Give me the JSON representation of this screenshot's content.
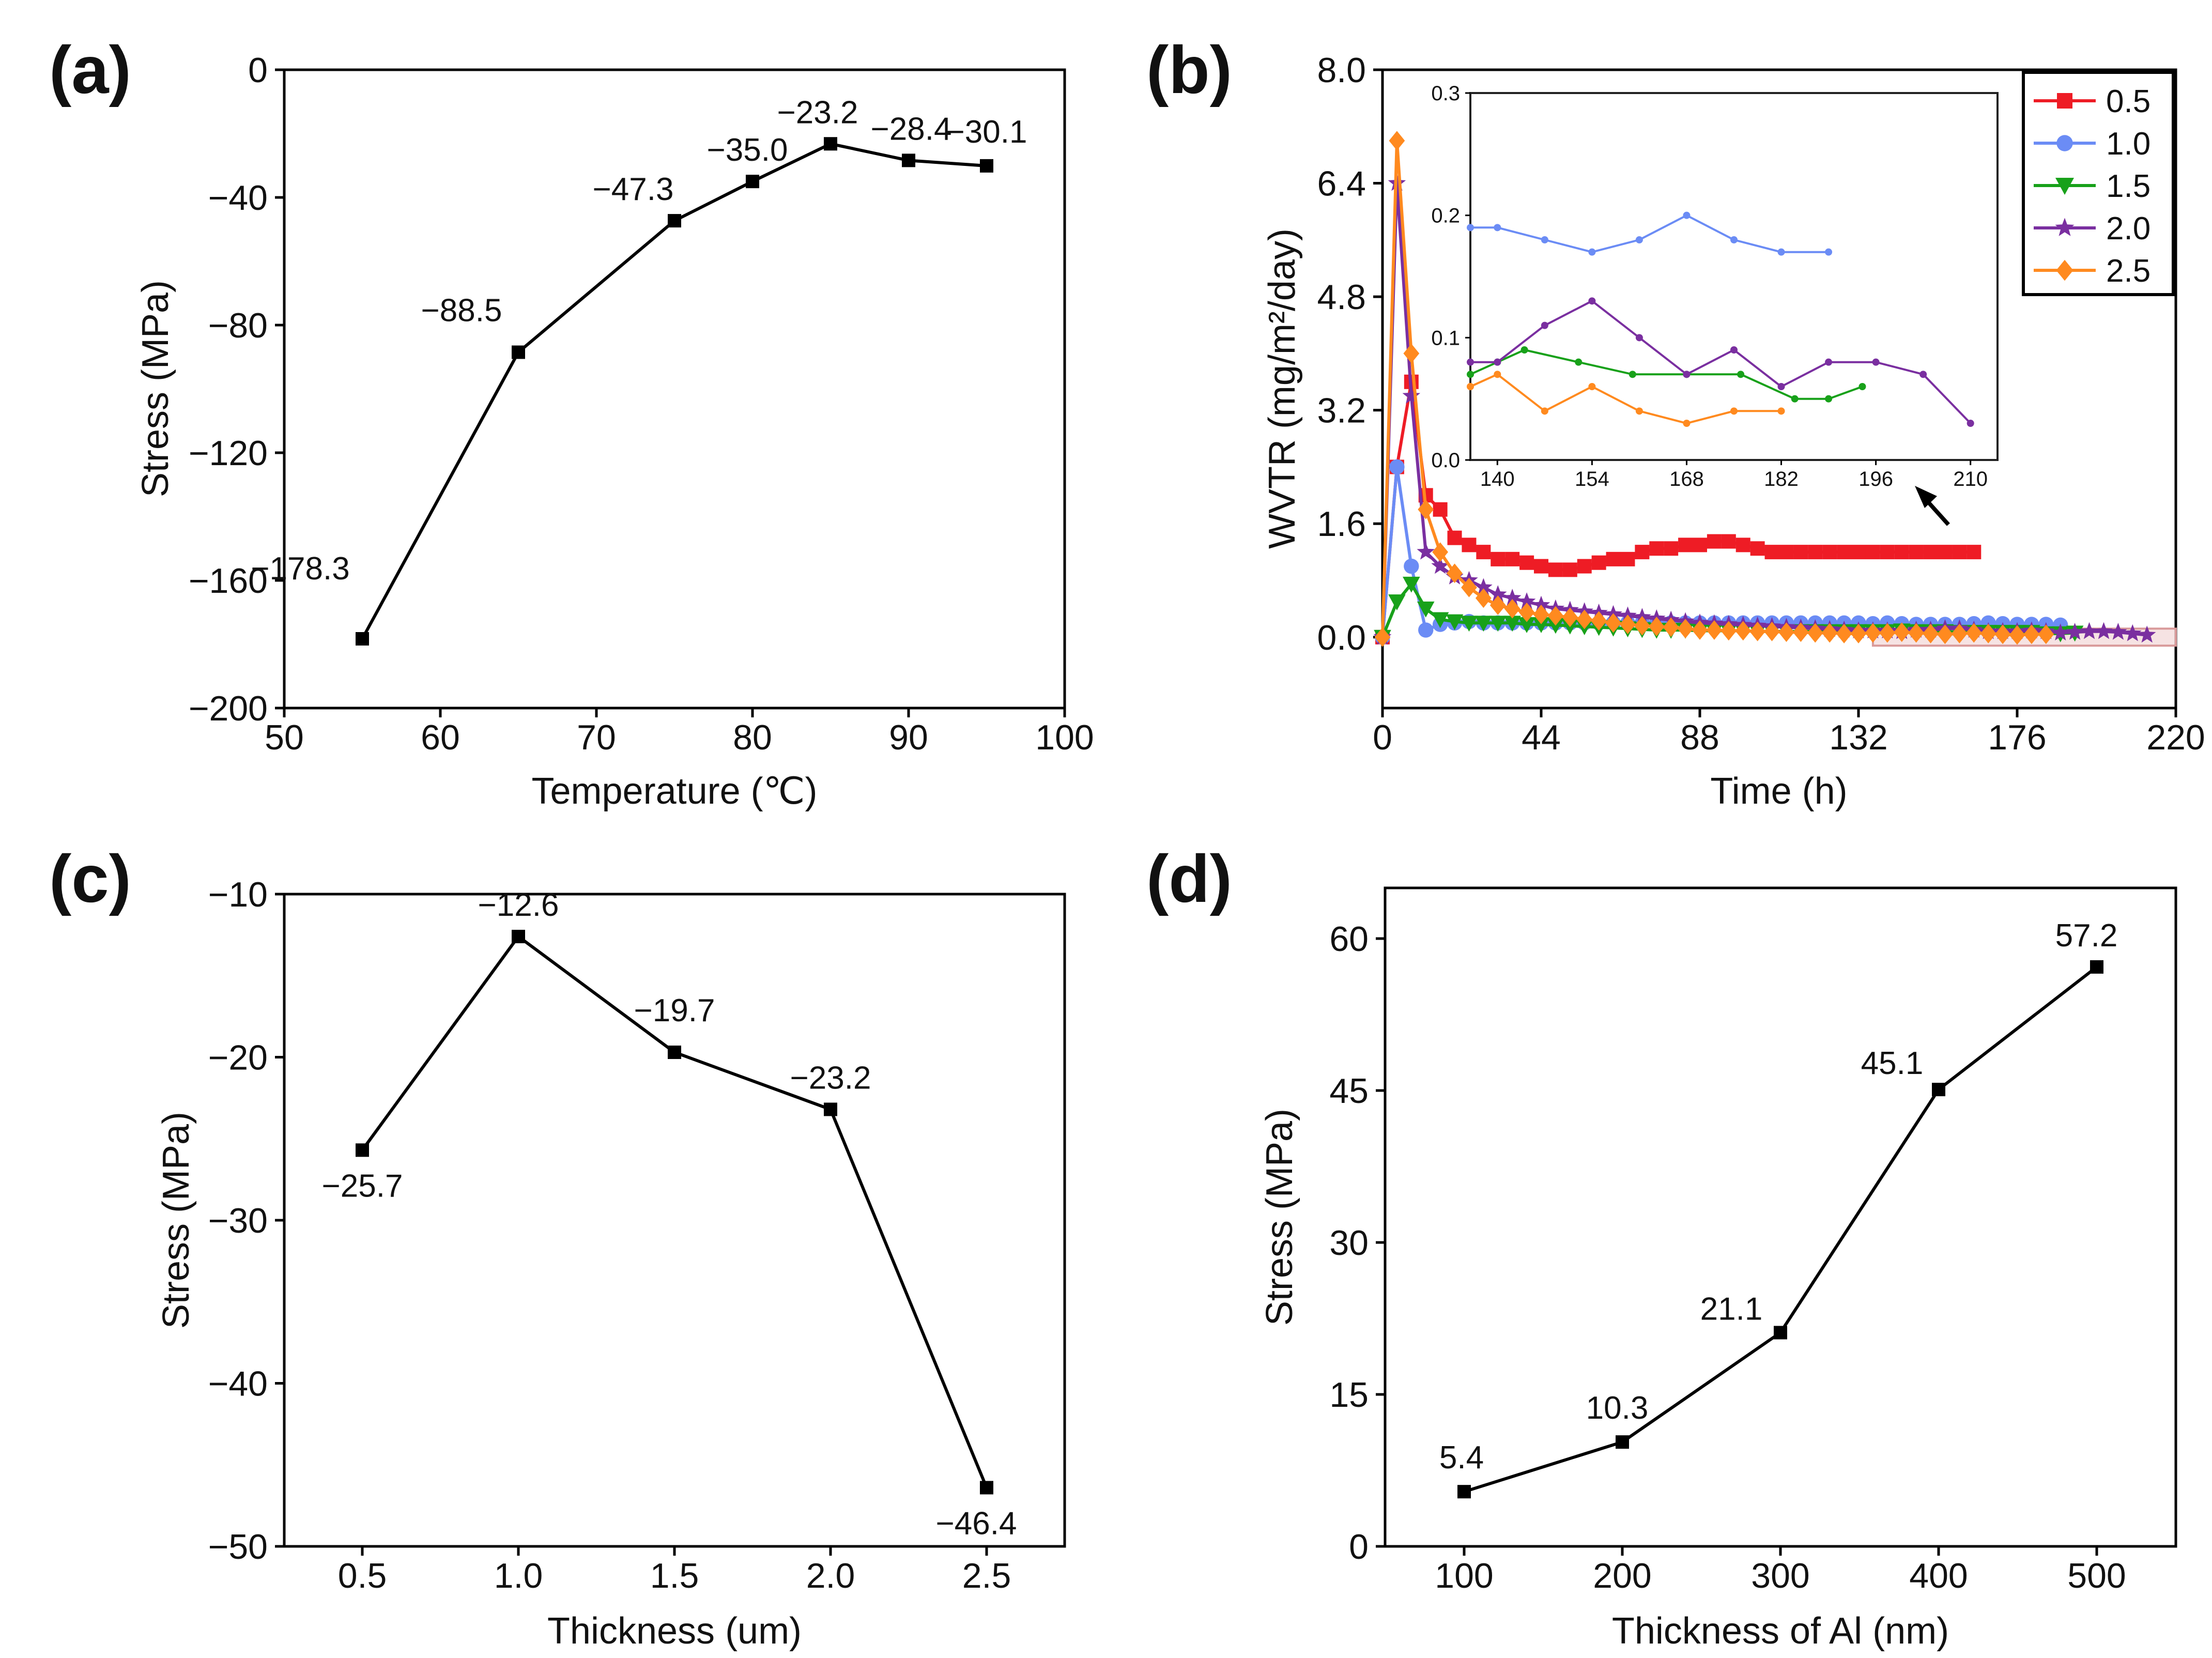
{
  "colors": {
    "series_0_5": "#ee1c25",
    "series_1_0": "#6b8cf5",
    "series_1_5": "#18a11a",
    "series_2_0": "#7a2fa0",
    "series_2_5": "#ff8a1f",
    "line": "#000000"
  },
  "chart_data": [
    {
      "type": "line",
      "panel": "(a)",
      "xlabel": "Temperature (℃)",
      "ylabel": "Stress (MPa)",
      "xlim": [
        50,
        100
      ],
      "ylim": [
        -200,
        0
      ],
      "xticks": [
        50,
        60,
        70,
        80,
        90,
        100
      ],
      "yticks": [
        0,
        -40,
        -80,
        -120,
        -160,
        -200
      ],
      "xtick_labels": [
        "50",
        "60",
        "70",
        "80",
        "90",
        "100"
      ],
      "ytick_labels": [
        "0",
        "−40",
        "−80",
        "−120",
        "−160",
        "−200"
      ],
      "x": [
        55,
        65,
        75,
        80,
        85,
        90,
        95
      ],
      "y": [
        -178.3,
        -88.5,
        -47.3,
        -35.0,
        -23.2,
        -28.4,
        -30.1
      ],
      "point_labels": [
        "−178.3",
        "−88.5",
        "−47.3",
        "−35.0",
        "−23.2",
        "−28.4",
        "−30.1"
      ],
      "marker": "square"
    },
    {
      "type": "line",
      "panel": "(b)",
      "xlabel": "Time (h)",
      "ylabel": "WVTR (mg/m²/day)",
      "xlim": [
        0,
        220
      ],
      "ylim": [
        -1.0,
        8.0
      ],
      "xticks": [
        0,
        44,
        88,
        132,
        176,
        220
      ],
      "yticks": [
        0.0,
        1.6,
        3.2,
        4.8,
        6.4,
        8.0
      ],
      "xtick_labels": [
        "0",
        "44",
        "88",
        "132",
        "176",
        "220"
      ],
      "ytick_labels": [
        "0.0",
        "1.6",
        "3.2",
        "4.8",
        "6.4",
        "8.0"
      ],
      "legend_position": "top-right",
      "series": [
        {
          "name": "0.5",
          "color_key": "series_0_5",
          "marker": "square",
          "x": [
            0,
            4,
            8,
            12,
            16,
            20,
            24,
            28,
            32,
            36,
            40,
            44,
            48,
            52,
            56,
            60,
            64,
            68,
            72,
            76,
            80,
            84,
            88,
            92,
            96,
            100,
            104,
            108,
            112,
            116,
            120,
            124,
            128,
            132,
            136,
            140,
            144,
            148,
            152,
            156,
            160,
            164
          ],
          "y": [
            0.0,
            2.4,
            3.6,
            2.0,
            1.8,
            1.4,
            1.3,
            1.2,
            1.1,
            1.1,
            1.05,
            1.0,
            0.95,
            0.95,
            1.0,
            1.05,
            1.1,
            1.1,
            1.2,
            1.25,
            1.25,
            1.3,
            1.3,
            1.35,
            1.35,
            1.3,
            1.25,
            1.2,
            1.2,
            1.2,
            1.2,
            1.2,
            1.2,
            1.2,
            1.2,
            1.2,
            1.2,
            1.2,
            1.2,
            1.2,
            1.2,
            1.2
          ]
        },
        {
          "name": "1.0",
          "color_key": "series_1_0",
          "marker": "circle",
          "x": [
            0,
            4,
            8,
            12,
            16,
            20,
            24,
            28,
            32,
            36,
            40,
            44,
            48,
            52,
            56,
            60,
            64,
            68,
            72,
            76,
            80,
            84,
            88,
            92,
            96,
            100,
            104,
            108,
            112,
            116,
            120,
            124,
            128,
            132,
            136,
            140,
            144,
            148,
            152,
            156,
            160,
            164,
            168,
            172,
            176,
            180,
            184,
            188
          ],
          "y": [
            0.0,
            2.4,
            1.0,
            0.1,
            0.18,
            0.2,
            0.22,
            0.2,
            0.2,
            0.2,
            0.2,
            0.2,
            0.2,
            0.2,
            0.2,
            0.2,
            0.2,
            0.2,
            0.2,
            0.2,
            0.2,
            0.2,
            0.2,
            0.2,
            0.2,
            0.2,
            0.2,
            0.2,
            0.2,
            0.2,
            0.2,
            0.2,
            0.2,
            0.2,
            0.19,
            0.2,
            0.19,
            0.18,
            0.18,
            0.18,
            0.18,
            0.19,
            0.2,
            0.19,
            0.18,
            0.18,
            0.18,
            0.17
          ]
        },
        {
          "name": "1.5",
          "color_key": "series_1_5",
          "marker": "triangle-down",
          "x": [
            0,
            4,
            8,
            12,
            16,
            20,
            24,
            28,
            32,
            36,
            40,
            44,
            48,
            52,
            56,
            60,
            64,
            68,
            72,
            76,
            80,
            84,
            88,
            92,
            96,
            100,
            104,
            108,
            112,
            116,
            120,
            124,
            128,
            132,
            136,
            140,
            144,
            148,
            152,
            156,
            160,
            164,
            168,
            172,
            176,
            180,
            184,
            188,
            192
          ],
          "y": [
            0.0,
            0.5,
            0.75,
            0.4,
            0.25,
            0.22,
            0.2,
            0.2,
            0.2,
            0.2,
            0.18,
            0.18,
            0.17,
            0.16,
            0.15,
            0.14,
            0.13,
            0.12,
            0.11,
            0.1,
            0.1,
            0.1,
            0.09,
            0.09,
            0.09,
            0.09,
            0.08,
            0.08,
            0.08,
            0.08,
            0.08,
            0.08,
            0.08,
            0.08,
            0.08,
            0.08,
            0.09,
            0.08,
            0.08,
            0.08,
            0.07,
            0.07,
            0.07,
            0.07,
            0.07,
            0.07,
            0.05,
            0.05,
            0.06
          ]
        },
        {
          "name": "2.0",
          "color_key": "series_2_0",
          "marker": "star",
          "x": [
            0,
            4,
            8,
            12,
            16,
            20,
            24,
            28,
            32,
            36,
            40,
            44,
            48,
            52,
            56,
            60,
            64,
            68,
            72,
            76,
            80,
            84,
            88,
            92,
            96,
            100,
            104,
            108,
            112,
            116,
            120,
            124,
            128,
            132,
            136,
            140,
            144,
            148,
            152,
            156,
            160,
            164,
            168,
            172,
            176,
            180,
            184,
            188,
            192,
            196,
            200,
            204,
            208,
            212
          ],
          "y": [
            0.0,
            6.4,
            3.4,
            1.2,
            1.0,
            0.85,
            0.8,
            0.7,
            0.6,
            0.55,
            0.5,
            0.45,
            0.4,
            0.38,
            0.36,
            0.34,
            0.32,
            0.3,
            0.28,
            0.26,
            0.24,
            0.22,
            0.2,
            0.19,
            0.18,
            0.17,
            0.16,
            0.15,
            0.14,
            0.13,
            0.12,
            0.11,
            0.1,
            0.09,
            0.09,
            0.09,
            0.08,
            0.1,
            0.1,
            0.12,
            0.12,
            0.1,
            0.08,
            0.08,
            0.08,
            0.09,
            0.08,
            0.06,
            0.07,
            0.08,
            0.08,
            0.07,
            0.05,
            0.03
          ]
        },
        {
          "name": "2.5",
          "color_key": "series_2_5",
          "marker": "diamond",
          "x": [
            0,
            4,
            8,
            12,
            16,
            20,
            24,
            28,
            32,
            36,
            40,
            44,
            48,
            52,
            56,
            60,
            64,
            68,
            72,
            76,
            80,
            84,
            88,
            92,
            96,
            100,
            104,
            108,
            112,
            116,
            120,
            124,
            128,
            132,
            136,
            140,
            144,
            148,
            152,
            156,
            160,
            164,
            168,
            172,
            176,
            180,
            184
          ],
          "y": [
            0.0,
            7.0,
            4.0,
            1.8,
            1.2,
            0.9,
            0.7,
            0.55,
            0.45,
            0.4,
            0.35,
            0.32,
            0.3,
            0.28,
            0.25,
            0.23,
            0.2,
            0.18,
            0.16,
            0.15,
            0.14,
            0.12,
            0.1,
            0.1,
            0.09,
            0.09,
            0.08,
            0.08,
            0.07,
            0.07,
            0.06,
            0.06,
            0.05,
            0.05,
            0.06,
            0.06,
            0.07,
            0.06,
            0.05,
            0.04,
            0.05,
            0.06,
            0.05,
            0.04,
            0.03,
            0.04,
            0.04
          ]
        }
      ],
      "inset": {
        "xlim": [
          136,
          214
        ],
        "ylim": [
          0.0,
          0.3
        ],
        "xticks": [
          140,
          154,
          168,
          182,
          196,
          210
        ],
        "yticks": [
          0.0,
          0.1,
          0.2,
          0.3
        ],
        "xtick_labels": [
          "140",
          "154",
          "168",
          "182",
          "196",
          "210"
        ],
        "ytick_labels": [
          "0.0",
          "0.1",
          "0.2",
          "0.3"
        ],
        "series": [
          {
            "name": "1.0",
            "color_key": "series_1_0",
            "x": [
              136,
              140,
              147,
              154,
              161,
              168,
              175,
              182,
              189
            ],
            "y": [
              0.19,
              0.19,
              0.18,
              0.17,
              0.18,
              0.2,
              0.18,
              0.17,
              0.17
            ]
          },
          {
            "name": "1.5",
            "color_key": "series_1_5",
            "x": [
              136,
              140,
              144,
              152,
              160,
              168,
              176,
              184,
              189,
              194
            ],
            "y": [
              0.07,
              0.08,
              0.09,
              0.08,
              0.07,
              0.07,
              0.07,
              0.05,
              0.05,
              0.06
            ]
          },
          {
            "name": "2.0",
            "color_key": "series_2_0",
            "x": [
              136,
              140,
              147,
              154,
              161,
              168,
              175,
              182,
              189,
              196,
              203,
              210
            ],
            "y": [
              0.08,
              0.08,
              0.11,
              0.13,
              0.1,
              0.07,
              0.09,
              0.06,
              0.08,
              0.08,
              0.07,
              0.03
            ]
          },
          {
            "name": "2.5",
            "color_key": "series_2_5",
            "x": [
              136,
              140,
              147,
              154,
              161,
              168,
              175,
              182
            ],
            "y": [
              0.06,
              0.07,
              0.04,
              0.06,
              0.04,
              0.03,
              0.04,
              0.04
            ]
          }
        ]
      },
      "highlight_x_range": [
        136,
        220
      ],
      "highlight_y_range": [
        -0.12,
        0.12
      ]
    },
    {
      "type": "line",
      "panel": "(c)",
      "xlabel": "Thickness (um)",
      "ylabel": "Stress (MPa)",
      "xlim": [
        0.25,
        2.75
      ],
      "ylim": [
        -50,
        -10
      ],
      "xticks": [
        0.5,
        1.0,
        1.5,
        2.0,
        2.5
      ],
      "yticks": [
        -10,
        -20,
        -30,
        -40,
        -50
      ],
      "xtick_labels": [
        "0.5",
        "1.0",
        "1.5",
        "2.0",
        "2.5"
      ],
      "ytick_labels": [
        "−10",
        "−20",
        "−30",
        "−40",
        "−50"
      ],
      "x": [
        0.5,
        1.0,
        1.5,
        2.0,
        2.5
      ],
      "y": [
        -25.7,
        -12.6,
        -19.7,
        -23.2,
        -46.4
      ],
      "point_labels": [
        "−25.7",
        "−12.6",
        "−19.7",
        "−23.2",
        "−46.4"
      ],
      "marker": "square"
    },
    {
      "type": "line",
      "panel": "(d)",
      "xlabel": "Thickness of Al (nm)",
      "ylabel": "Stress (MPa)",
      "xlim": [
        50,
        550
      ],
      "ylim": [
        0,
        65
      ],
      "xticks": [
        100,
        200,
        300,
        400,
        500
      ],
      "yticks": [
        0,
        15,
        30,
        45,
        60
      ],
      "xtick_labels": [
        "100",
        "200",
        "300",
        "400",
        "500"
      ],
      "ytick_labels": [
        "0",
        "15",
        "30",
        "45",
        "60"
      ],
      "x": [
        100,
        200,
        300,
        400,
        500
      ],
      "y": [
        5.4,
        10.3,
        21.1,
        45.1,
        57.2
      ],
      "point_labels": [
        "5.4",
        "10.3",
        "21.1",
        "45.1",
        "57.2"
      ],
      "marker": "square"
    }
  ]
}
